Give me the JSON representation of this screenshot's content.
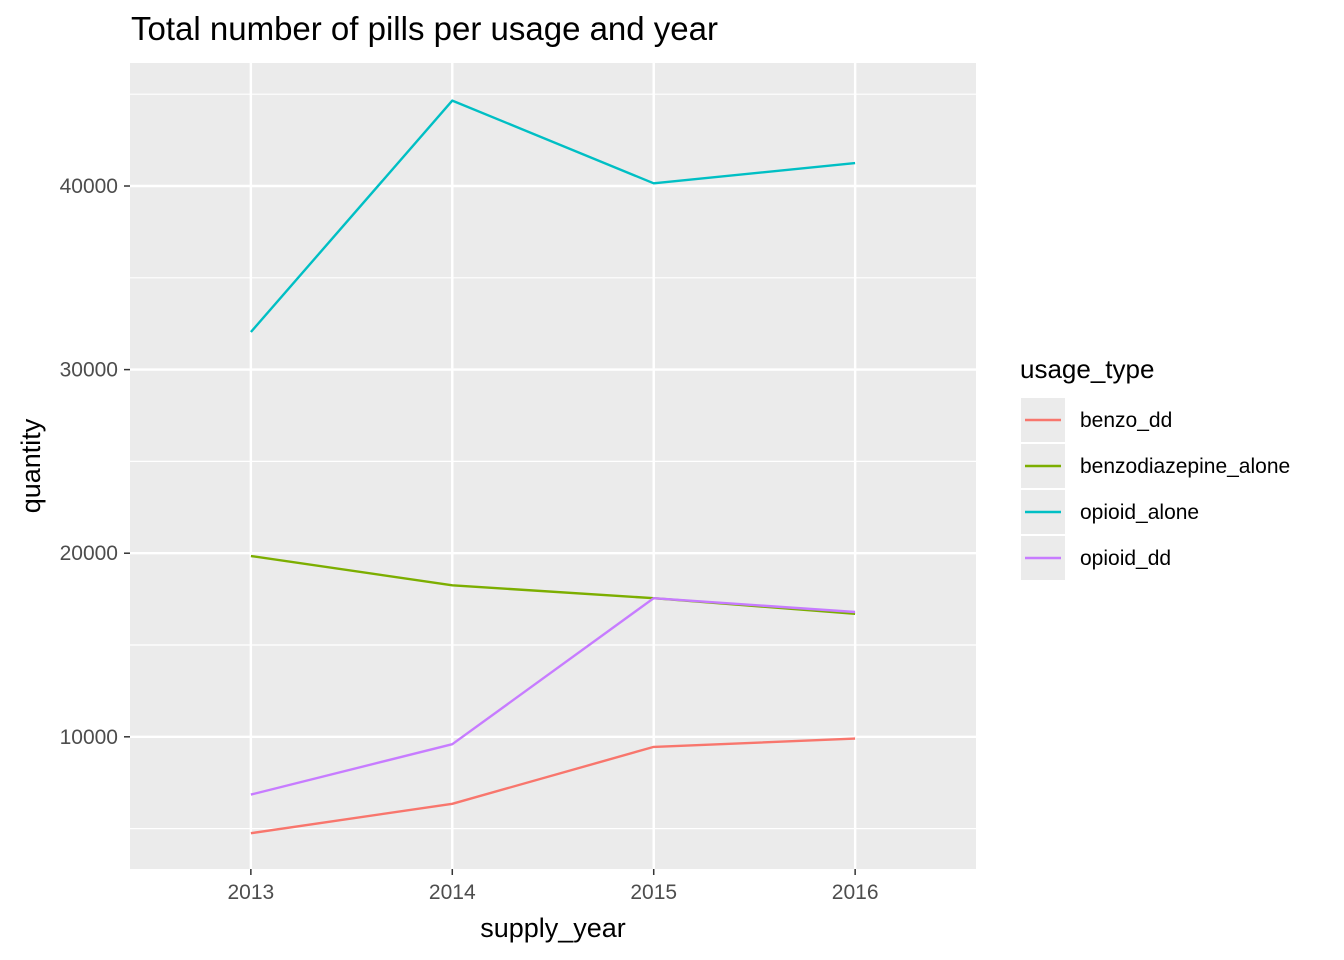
{
  "chart_data": {
    "type": "line",
    "title": "Total number of pills per usage and year",
    "xlabel": "supply_year",
    "ylabel": "quantity",
    "x": [
      2013,
      2014,
      2015,
      2016
    ],
    "xlim": [
      2012.4,
      2016.6
    ],
    "ylim": [
      2800,
      46700
    ],
    "y_ticks": [
      10000,
      20000,
      30000,
      40000
    ],
    "y_minor_ticks": [
      5000,
      15000,
      25000,
      35000,
      45000
    ],
    "grid": true,
    "legend": {
      "title": "usage_type",
      "placement": "right"
    },
    "series": [
      {
        "name": "benzo_dd",
        "color": "#F8766D",
        "values": [
          4750,
          6350,
          9450,
          9900
        ]
      },
      {
        "name": "benzodiazepine_alone",
        "color": "#7CAE00",
        "values": [
          19850,
          18250,
          17550,
          16700
        ]
      },
      {
        "name": "opioid_alone",
        "color": "#00BFC4",
        "values": [
          32050,
          44650,
          40150,
          41250
        ]
      },
      {
        "name": "opioid_dd",
        "color": "#C77CFF",
        "values": [
          6850,
          9600,
          17550,
          16800
        ]
      }
    ]
  }
}
